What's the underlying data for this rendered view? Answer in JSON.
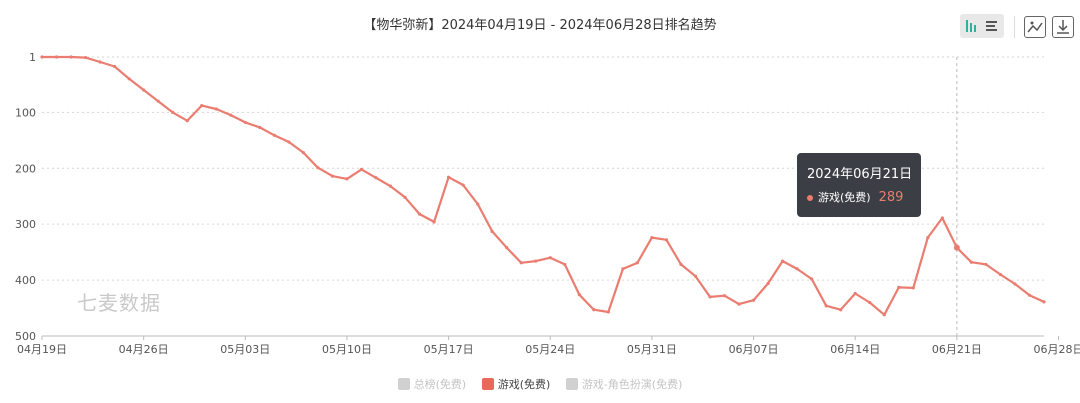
{
  "title": "【物华弥新】2024年04月19日 - 2024年06月28日排名趋势",
  "toolbar": {
    "view_toggle": "bar-list-toggle-icon",
    "image": "image-icon",
    "download": "download-icon"
  },
  "watermark": "七麦数据",
  "tooltip": {
    "date": "2024年06月21日",
    "series": "游戏(免费)",
    "value": "289"
  },
  "colors": {
    "line": "#ea7c70",
    "grid": "#d6d6d6",
    "tooltip_bg": "#3b3f45"
  },
  "chart_data": {
    "type": "line",
    "x_start": "2024-04-19",
    "y_axis": {
      "inverted": true,
      "ylim": [
        1,
        500
      ],
      "ticks": [
        "1",
        "100",
        "200",
        "300",
        "400",
        "500"
      ]
    },
    "x_ticks": [
      "04月19日",
      "04月26日",
      "05月03日",
      "05月10日",
      "05月17日",
      "05月24日",
      "05月31日",
      "06月07日",
      "06月14日",
      "06月21日",
      "06月28日"
    ],
    "grid": true,
    "legend_position": "bottom",
    "series": [
      {
        "name": "总榜(免费)",
        "active": false,
        "values": []
      },
      {
        "name": "游戏(免费)",
        "active": true,
        "values": [
          1,
          1,
          1,
          2,
          10,
          18,
          40,
          60,
          80,
          100,
          115,
          88,
          94,
          105,
          118,
          127,
          141,
          153,
          172,
          199,
          214,
          219,
          202,
          217,
          232,
          252,
          282,
          296,
          216,
          230,
          264,
          313,
          342,
          369,
          366,
          360,
          372,
          426,
          453,
          457,
          380,
          369,
          324,
          328,
          372,
          393,
          430,
          428,
          443,
          436,
          406,
          366,
          380,
          398,
          446,
          453,
          424,
          440,
          462,
          413,
          414,
          324,
          289,
          342,
          368,
          372,
          390,
          407,
          427,
          439
        ]
      },
      {
        "name": "游戏-角色扮演(免费)",
        "active": false,
        "values": []
      }
    ]
  }
}
